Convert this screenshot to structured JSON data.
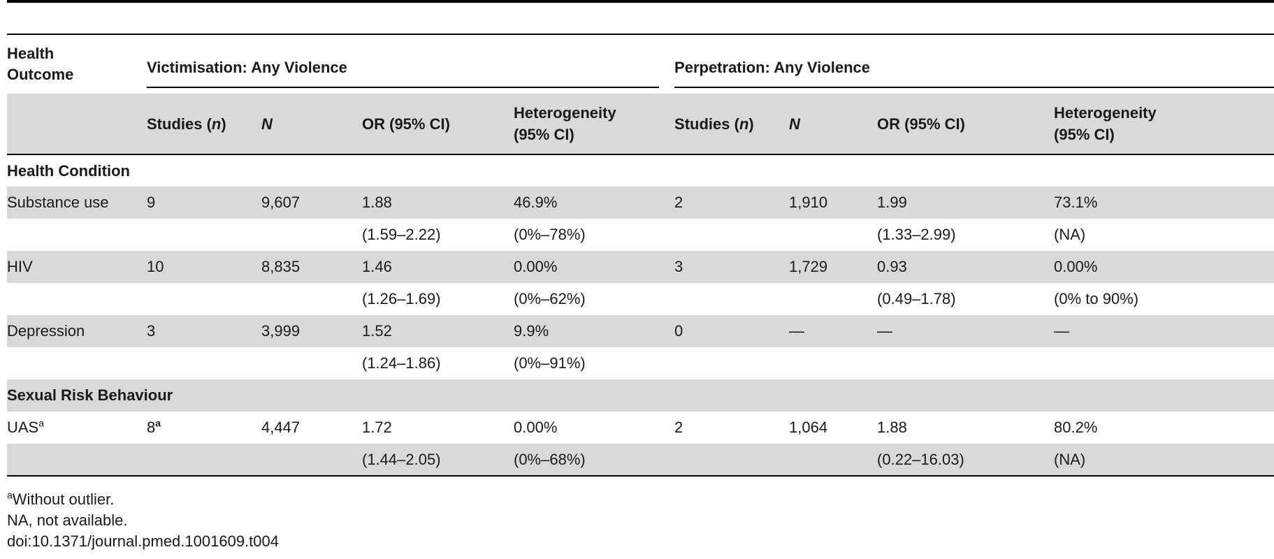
{
  "header": {
    "outcome_label": "Health Outcome",
    "victimisation_group": "Victimisation: Any Violence",
    "perpetration_group": "Perpetration: Any Violence",
    "columns": {
      "studies": "Studies (",
      "studies_n": "n",
      "studies_close": ")",
      "n": "N",
      "or": "OR (95% CI)",
      "heterogeneity": "Heterogeneity (95% CI)"
    }
  },
  "sections": [
    {
      "title": "Health Condition",
      "rows": [
        {
          "outcome": "Substance use",
          "v_studies": "9",
          "v_n": "9,607",
          "v_or": "1.88",
          "v_or_ci": "(1.59–2.22)",
          "v_het": "46.9%",
          "v_het_ci": "(0%–78%)",
          "p_studies": "2",
          "p_n": "1,910",
          "p_or": "1.99",
          "p_or_ci": "(1.33–2.99)",
          "p_het": "73.1%",
          "p_het_ci": "(NA)"
        },
        {
          "outcome": "HIV",
          "v_studies": "10",
          "v_n": "8,835",
          "v_or": "1.46",
          "v_or_ci": "(1.26–1.69)",
          "v_het": "0.00%",
          "v_het_ci": "(0%–62%)",
          "p_studies": "3",
          "p_n": "1,729",
          "p_or": "0.93",
          "p_or_ci": "(0.49–1.78)",
          "p_het": "0.00%",
          "p_het_ci": "(0% to 90%)"
        },
        {
          "outcome": "Depression",
          "v_studies": "3",
          "v_n": "3,999",
          "v_or": "1.52",
          "v_or_ci": "(1.24–1.86)",
          "v_het": "9.9%",
          "v_het_ci": "(0%–91%)",
          "p_studies": "0",
          "p_n": "—",
          "p_or": "—",
          "p_or_ci": "",
          "p_het": "—",
          "p_het_ci": ""
        }
      ]
    },
    {
      "title": "Sexual Risk Behaviour",
      "rows": [
        {
          "outcome": "UAS",
          "outcome_sup": "a",
          "v_studies": "8",
          "v_studies_sup": "a",
          "v_n": "4,447",
          "v_or": "1.72",
          "v_or_ci": "(1.44–2.05)",
          "v_het": "0.00%",
          "v_het_ci": "(0%–68%)",
          "p_studies": "2",
          "p_n": "1,064",
          "p_or": "1.88",
          "p_or_ci": "(0.22–16.03)",
          "p_het": "80.2%",
          "p_het_ci": "(NA)"
        }
      ]
    }
  ],
  "footnotes": {
    "a_marker": "a",
    "a_text": "Without outlier.",
    "na_note": "NA, not available.",
    "doi": "doi:10.1371/journal.pmed.1001609.t004"
  }
}
